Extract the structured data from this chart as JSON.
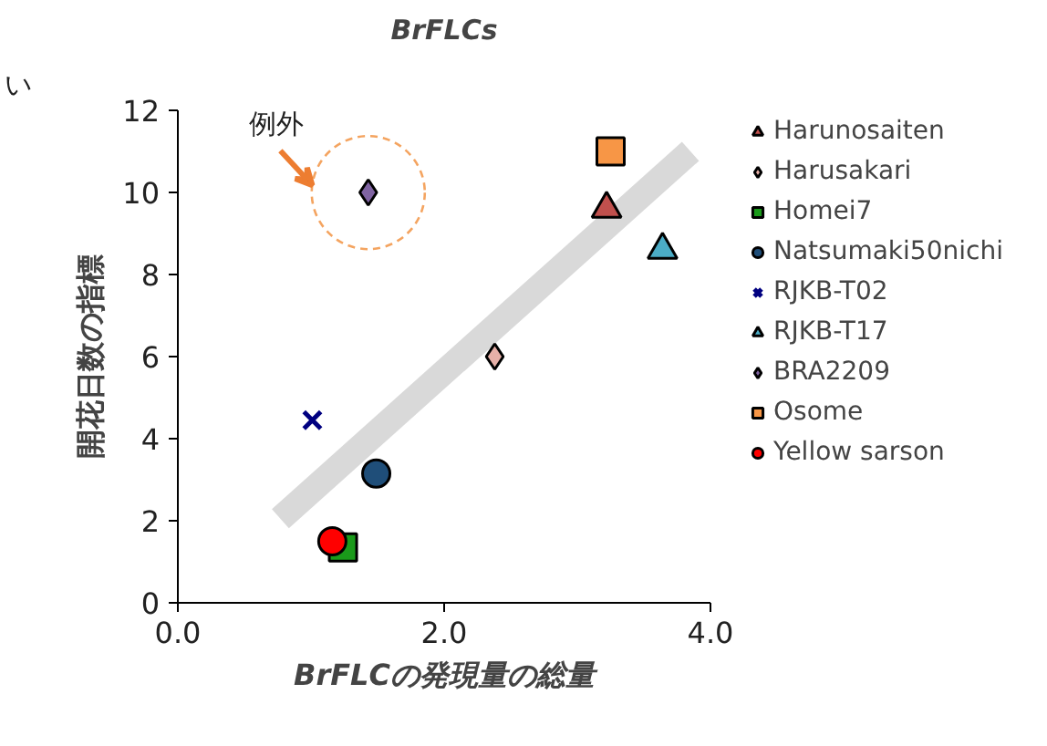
{
  "chart_data": {
    "type": "scatter",
    "title": "BrFLCs",
    "xlabel": "BrFLCの発現量の総量",
    "ylabel": "開花日数の指標",
    "annotations": [
      "い",
      "例外"
    ],
    "xlim": [
      0,
      4
    ],
    "xticks": [
      {
        "value": 0,
        "label": "0.0"
      },
      {
        "value": 2,
        "label": "2.0"
      },
      {
        "value": 4,
        "label": "4.0"
      }
    ],
    "ylim": [
      0,
      12
    ],
    "yticks": [
      0,
      2,
      4,
      6,
      8,
      10,
      12
    ],
    "grid": false,
    "legend": "right",
    "series": [
      {
        "type": "line",
        "color": "#d9d9d9",
        "x": [
          0.77,
          3.85
        ],
        "values": [
          2.05,
          11.0
        ]
      },
      {
        "name": "Harunosaiten",
        "color": "#c0504d",
        "marker": "triangle",
        "x": [
          3.22
        ],
        "values": [
          9.6
        ]
      },
      {
        "name": "Harusakari",
        "color": "#e6b0a8",
        "marker": "diamond",
        "x": [
          2.38
        ],
        "values": [
          6.0
        ]
      },
      {
        "name": "Homei7",
        "color": "#1a9a1a",
        "marker": "square",
        "x": [
          1.24
        ],
        "values": [
          1.35
        ]
      },
      {
        "name": "Natsumaki50nichi",
        "color": "#1f4e79",
        "marker": "circle",
        "x": [
          1.49
        ],
        "values": [
          3.15
        ]
      },
      {
        "name": "RJKB-T02",
        "color": "#000080",
        "marker": "cross",
        "x": [
          1.01
        ],
        "values": [
          4.45
        ]
      },
      {
        "name": "RJKB-T17",
        "color": "#4bacc6",
        "marker": "triangle",
        "x": [
          3.64
        ],
        "values": [
          8.6
        ]
      },
      {
        "name": "BRA2209",
        "color": "#8064a2",
        "marker": "diamond",
        "x": [
          1.43
        ],
        "values": [
          10.0
        ]
      },
      {
        "name": "Osome",
        "color": "#f79646",
        "marker": "square",
        "x": [
          3.25
        ],
        "values": [
          11.0
        ]
      },
      {
        "name": "Yellow sarson",
        "color": "#ff0000",
        "marker": "circle",
        "x": [
          1.16
        ],
        "values": [
          1.5
        ]
      }
    ]
  }
}
